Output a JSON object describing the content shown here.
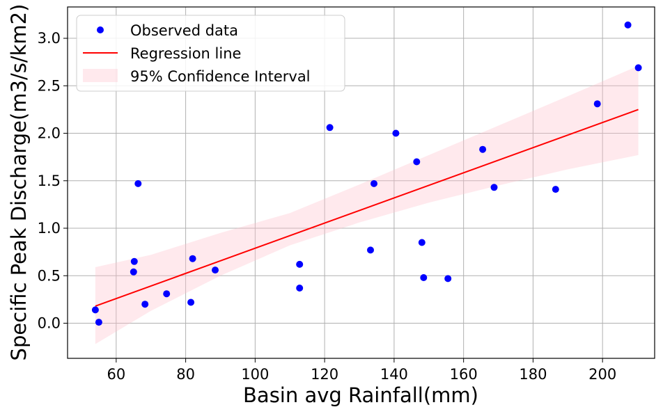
{
  "chart_data": {
    "type": "scatter",
    "title": "",
    "xlabel": "Basin avg Rainfall(mm)",
    "ylabel": "Specific Peak Discharge(m3/s/km2)",
    "xlim": [
      46,
      215
    ],
    "ylim": [
      -0.37,
      3.33
    ],
    "xticks": [
      60,
      80,
      100,
      120,
      140,
      160,
      180,
      200
    ],
    "yticks": [
      0.0,
      0.5,
      1.0,
      1.5,
      2.0,
      2.5,
      3.0
    ],
    "grid": true,
    "legend_position": "top-left",
    "series": [
      {
        "name": "Observed data",
        "type": "scatter",
        "color": "#0000ff",
        "points": [
          [
            54.0,
            0.14
          ],
          [
            55.0,
            0.01
          ],
          [
            65.2,
            0.65
          ],
          [
            65.0,
            0.54
          ],
          [
            66.3,
            1.47
          ],
          [
            68.3,
            0.2
          ],
          [
            74.5,
            0.31
          ],
          [
            81.5,
            0.22
          ],
          [
            82.0,
            0.68
          ],
          [
            88.5,
            0.56
          ],
          [
            112.8,
            0.62
          ],
          [
            112.8,
            0.37
          ],
          [
            121.5,
            2.06
          ],
          [
            133.2,
            0.77
          ],
          [
            134.2,
            1.47
          ],
          [
            140.5,
            2.0
          ],
          [
            146.5,
            1.7
          ],
          [
            148.0,
            0.85
          ],
          [
            148.5,
            0.48
          ],
          [
            155.5,
            0.47
          ],
          [
            165.5,
            1.83
          ],
          [
            168.8,
            1.43
          ],
          [
            186.5,
            1.41
          ],
          [
            198.5,
            2.31
          ],
          [
            207.3,
            3.14
          ],
          [
            210.3,
            2.69
          ]
        ]
      },
      {
        "name": "Regression line",
        "type": "line",
        "color": "#ff0000",
        "points": [
          [
            54.0,
            0.18
          ],
          [
            210.3,
            2.25
          ]
        ]
      },
      {
        "name": "95% Confidence Interval",
        "type": "area",
        "color": "#ffc0cb",
        "x": [
          54.0,
          70.0,
          90.0,
          110.0,
          130.0,
          150.0,
          170.0,
          190.0,
          210.3
        ],
        "lower": [
          -0.22,
          0.13,
          0.5,
          0.82,
          1.06,
          1.27,
          1.45,
          1.62,
          1.77
        ],
        "upper": [
          0.59,
          0.72,
          0.95,
          1.16,
          1.46,
          1.77,
          2.08,
          2.39,
          2.71
        ]
      }
    ]
  }
}
